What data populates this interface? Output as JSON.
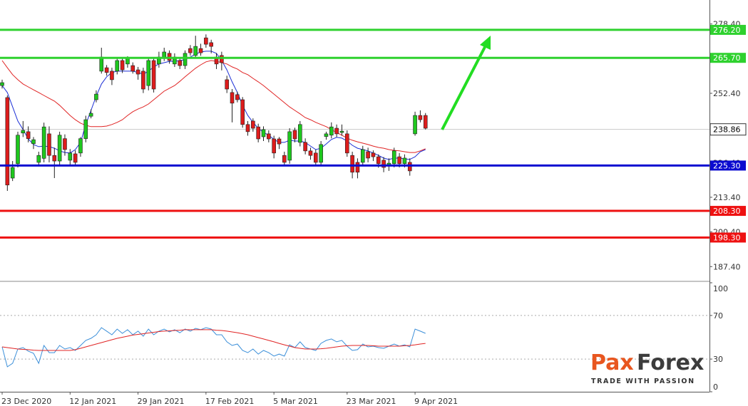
{
  "chart_data": [
    {
      "type": "candlestick",
      "categories": [
        "23 Dec 2020",
        null,
        null,
        null,
        null,
        null,
        null,
        null,
        null,
        null,
        null,
        null,
        null,
        "12 Jan 2021",
        null,
        null,
        null,
        null,
        null,
        null,
        null,
        null,
        null,
        null,
        null,
        null,
        "29 Jan 2021",
        null,
        null,
        null,
        null,
        null,
        null,
        null,
        null,
        null,
        null,
        null,
        null,
        "17 Feb 2021",
        null,
        null,
        null,
        null,
        null,
        null,
        null,
        null,
        null,
        null,
        null,
        null,
        "5 Mar 2021",
        null,
        null,
        null,
        null,
        null,
        null,
        null,
        null,
        null,
        null,
        null,
        null,
        null,
        "23 Mar 2021",
        null,
        null,
        null,
        null,
        null,
        null,
        null,
        null,
        null,
        null,
        null,
        null,
        "9 Apr 2021",
        null,
        null
      ],
      "open": [
        255.3,
        250.8,
        220.6,
        226.0,
        237.5,
        238.0,
        233.5,
        226.5,
        228.0,
        237.2,
        229.1,
        227.0,
        235.4,
        227.3,
        229.7,
        230.0,
        235.4,
        243.8,
        250.0,
        260.7,
        262.0,
        260.7,
        260.7,
        264.7,
        263.4,
        262.8,
        261.2,
        260.7,
        255.3,
        264.7,
        263.4,
        265.5,
        267.4,
        263.4,
        264.7,
        262.8,
        269.2,
        266.6,
        269.2,
        273.2,
        271.4,
        266.0,
        266.6,
        257.5,
        252.7,
        251.9,
        250.0,
        240.7,
        242.0,
        239.8,
        236.1,
        237.2,
        235.3,
        235.3,
        229.1,
        227.3,
        238.5,
        234.0,
        234.0,
        230.8,
        230.0,
        226.5,
        236.2,
        236.7,
        239.3,
        237.7,
        237.2,
        229.1,
        226.5,
        226.5,
        230.5,
        230.0,
        228.6,
        227.3,
        225.4,
        226.0,
        228.6,
        226.0,
        226.5,
        237.2,
        244.1,
        244.1
      ],
      "high": [
        257.5,
        251.6,
        227.0,
        238.0,
        242.0,
        240.0,
        236.0,
        230.5,
        241.4,
        240.0,
        232.0,
        238.0,
        237.0,
        231.5,
        231.0,
        236.0,
        244.0,
        246.4,
        253.5,
        269.5,
        263.0,
        262.0,
        265.5,
        266.0,
        266.3,
        264.0,
        262.3,
        262.0,
        266.0,
        266.0,
        268.0,
        269.5,
        268.5,
        267.4,
        266.0,
        268.5,
        270.5,
        274.0,
        271.0,
        274.5,
        272.5,
        267.5,
        268.0,
        259.0,
        254.0,
        253.0,
        251.0,
        242.0,
        243.0,
        241.0,
        240.0,
        238.5,
        236.5,
        236.0,
        230.5,
        239.3,
        239.5,
        242.0,
        235.5,
        232.0,
        231.3,
        234.5,
        238.0,
        241.5,
        240.7,
        240.7,
        238.5,
        230.5,
        228.0,
        232.7,
        232.0,
        231.0,
        229.5,
        228.5,
        228.0,
        232.0,
        230.0,
        229.5,
        228.0,
        245.5,
        246.0,
        245.0
      ],
      "low": [
        254.2,
        215.8,
        219.5,
        224.6,
        236.0,
        234.0,
        231.5,
        225.0,
        226.5,
        226.5,
        220.6,
        225.0,
        229.0,
        225.4,
        225.5,
        228.6,
        234.0,
        243.0,
        249.0,
        259.8,
        259.0,
        255.5,
        259.5,
        260.0,
        262.0,
        259.8,
        257.5,
        252.5,
        253.5,
        252.7,
        262.0,
        264.5,
        263.5,
        262.3,
        261.5,
        261.5,
        266.5,
        265.5,
        266.5,
        269.5,
        267.4,
        261.5,
        261.0,
        252.5,
        241.5,
        249.0,
        239.5,
        236.5,
        238.0,
        234.0,
        234.5,
        234.0,
        228.0,
        231.5,
        225.5,
        226.0,
        234.0,
        232.5,
        229.5,
        227.5,
        225.5,
        225.5,
        235.0,
        235.5,
        236.0,
        236.5,
        228.6,
        220.5,
        220.5,
        225.0,
        226.5,
        227.0,
        224.5,
        222.8,
        223.3,
        224.6,
        224.6,
        224.6,
        221.5,
        236.5,
        241.5,
        238.8
      ],
      "close": [
        256.4,
        218.0,
        224.6,
        236.7,
        238.5,
        235.4,
        235.0,
        229.1,
        239.8,
        229.1,
        227.0,
        236.7,
        231.3,
        230.0,
        226.5,
        235.4,
        242.5,
        244.9,
        252.1,
        266.0,
        260.2,
        257.5,
        264.7,
        261.2,
        265.5,
        260.7,
        259.6,
        254.0,
        264.7,
        254.0,
        266.0,
        267.9,
        264.7,
        266.0,
        262.8,
        267.4,
        267.6,
        270.0,
        267.6,
        270.8,
        270.0,
        263.4,
        263.9,
        254.0,
        248.7,
        250.0,
        240.7,
        238.0,
        239.3,
        235.3,
        238.8,
        235.3,
        230.0,
        233.4,
        226.5,
        238.0,
        235.3,
        240.7,
        230.8,
        229.1,
        226.5,
        233.2,
        237.2,
        239.8,
        237.2,
        238.2,
        230.0,
        222.8,
        222.8,
        231.3,
        228.1,
        228.6,
        226.0,
        224.6,
        226.2,
        230.8,
        226.0,
        228.1,
        223.3,
        244.1,
        242.5,
        239.3
      ],
      "up_color": "#1ec71e",
      "down_color": "#dd1c1c",
      "series": [
        {
          "color": "#1c2fd6",
          "values": [
            255.3,
            252.7,
            247.3,
            242.0,
            238.8,
            235.3,
            233.2,
            232.4,
            232.6,
            232.4,
            231.8,
            230.8,
            230.2,
            230.0,
            231.3,
            234.0,
            240.7,
            246.0,
            251.3,
            255.9,
            258.6,
            260.2,
            260.7,
            260.7,
            260.7,
            260.7,
            260.2,
            259.6,
            260.7,
            262.3,
            263.4,
            263.9,
            264.4,
            264.4,
            264.7,
            265.0,
            266.0,
            267.1,
            267.9,
            268.2,
            268.2,
            267.4,
            264.7,
            261.2,
            256.7,
            252.7,
            247.9,
            244.1,
            241.5,
            239.3,
            237.7,
            236.7,
            235.1,
            234.0,
            234.0,
            234.8,
            234.5,
            234.5,
            234.0,
            232.6,
            231.3,
            231.8,
            233.4,
            235.1,
            235.9,
            235.6,
            234.5,
            232.9,
            231.8,
            231.3,
            230.8,
            230.0,
            229.1,
            228.1,
            227.6,
            228.1,
            228.1,
            227.8,
            227.6,
            228.6,
            230.5,
            231.3
          ]
        },
        {
          "color": "#e02424",
          "values": [
            264.7,
            262.0,
            259.4,
            257.5,
            255.9,
            254.8,
            253.7,
            252.7,
            251.6,
            250.5,
            249.5,
            247.9,
            246.0,
            244.1,
            242.5,
            241.2,
            240.4,
            239.9,
            239.9,
            239.9,
            240.1,
            240.7,
            241.5,
            242.5,
            244.1,
            245.5,
            246.5,
            247.3,
            248.4,
            250.0,
            251.6,
            253.2,
            254.3,
            255.3,
            256.9,
            258.6,
            260.2,
            261.8,
            263.1,
            264.2,
            264.7,
            264.4,
            263.9,
            263.4,
            262.3,
            261.5,
            260.2,
            259.4,
            258.0,
            256.7,
            255.3,
            253.7,
            252.1,
            250.5,
            248.9,
            247.3,
            246.0,
            244.7,
            243.3,
            242.5,
            241.5,
            240.7,
            239.9,
            238.8,
            237.7,
            236.7,
            235.6,
            234.8,
            234.2,
            233.7,
            233.2,
            232.6,
            232.1,
            231.8,
            231.3,
            231.0,
            230.8,
            230.5,
            230.2,
            230.2,
            230.8,
            231.6
          ]
        }
      ],
      "levels": [
        {
          "value": 276.2,
          "label": "276.20",
          "color": "#2ed12e"
        },
        {
          "value": 265.7,
          "label": "265.70",
          "color": "#2ed12e"
        },
        {
          "value": 225.3,
          "label": "225.30",
          "color": "#0a0ad0"
        },
        {
          "value": 208.3,
          "label": "208.30",
          "color": "#ee1111"
        },
        {
          "value": 198.3,
          "label": "198.30",
          "color": "#ee1111"
        }
      ],
      "last_price": {
        "value": 238.86,
        "label": "238.86"
      },
      "ylim": [
        182.4,
        287.4
      ],
      "yticks": [
        {
          "value": 187.4,
          "label": "187.40"
        },
        {
          "value": 200.4,
          "label": "200.40"
        },
        {
          "value": 213.4,
          "label": "213.40"
        },
        {
          "value": 226.4,
          "label": "226.40"
        },
        {
          "value": 252.4,
          "label": "252.40"
        },
        {
          "value": 278.4,
          "label": "278.40"
        }
      ]
    },
    {
      "type": "line",
      "series": [
        {
          "color": "#3b8fd9",
          "values": [
            41.2,
            22.9,
            26.1,
            39.2,
            40.5,
            37.3,
            35.3,
            26.1,
            42.5,
            35.9,
            35.9,
            42.5,
            39.2,
            40.5,
            37.9,
            42.5,
            47.1,
            49.0,
            52.3,
            58.8,
            55.6,
            52.3,
            57.5,
            53.6,
            56.9,
            52.3,
            55.6,
            51.0,
            57.5,
            52.3,
            55.6,
            57.5,
            54.9,
            56.9,
            54.2,
            57.5,
            55.6,
            58.2,
            56.9,
            58.8,
            57.5,
            52.3,
            52.3,
            45.8,
            42.5,
            43.8,
            37.9,
            35.9,
            39.2,
            34.6,
            37.9,
            35.9,
            32.7,
            34.6,
            32.7,
            43.1,
            40.5,
            45.8,
            40.5,
            39.2,
            37.9,
            44.4,
            47.1,
            48.4,
            45.8,
            47.1,
            41.8,
            37.9,
            38.6,
            43.8,
            41.2,
            41.8,
            40.5,
            39.9,
            41.8,
            43.8,
            41.8,
            43.1,
            41.2,
            57.5,
            55.6,
            53.6
          ]
        },
        {
          "color": "#e02424",
          "values": [
            41.2,
            40.5,
            39.9,
            39.2,
            38.9,
            38.6,
            38.2,
            37.9,
            37.9,
            37.9,
            37.9,
            37.9,
            37.9,
            37.9,
            38.6,
            39.9,
            41.2,
            42.5,
            43.8,
            45.1,
            46.4,
            47.7,
            49.0,
            50.0,
            51.0,
            52.0,
            52.6,
            53.3,
            53.9,
            54.6,
            55.2,
            55.6,
            55.9,
            56.2,
            56.5,
            56.9,
            56.9,
            56.9,
            56.9,
            56.9,
            56.9,
            56.5,
            56.2,
            55.6,
            54.9,
            54.2,
            53.3,
            52.3,
            51.0,
            49.7,
            48.4,
            47.1,
            45.8,
            44.4,
            43.1,
            41.8,
            40.5,
            39.9,
            39.2,
            39.2,
            39.2,
            39.5,
            39.9,
            40.5,
            41.2,
            41.8,
            42.2,
            42.5,
            42.5,
            42.5,
            42.5,
            42.2,
            41.8,
            41.8,
            41.8,
            41.8,
            41.8,
            42.2,
            42.5,
            43.1,
            43.8,
            44.4
          ]
        }
      ],
      "ylim": [
        0,
        100
      ],
      "yticks": [
        100,
        70,
        30,
        0
      ],
      "grid": true
    }
  ],
  "logo": {
    "left": "Pax",
    "right": "Forex",
    "tagline": "TRADE WITH PASSION"
  }
}
